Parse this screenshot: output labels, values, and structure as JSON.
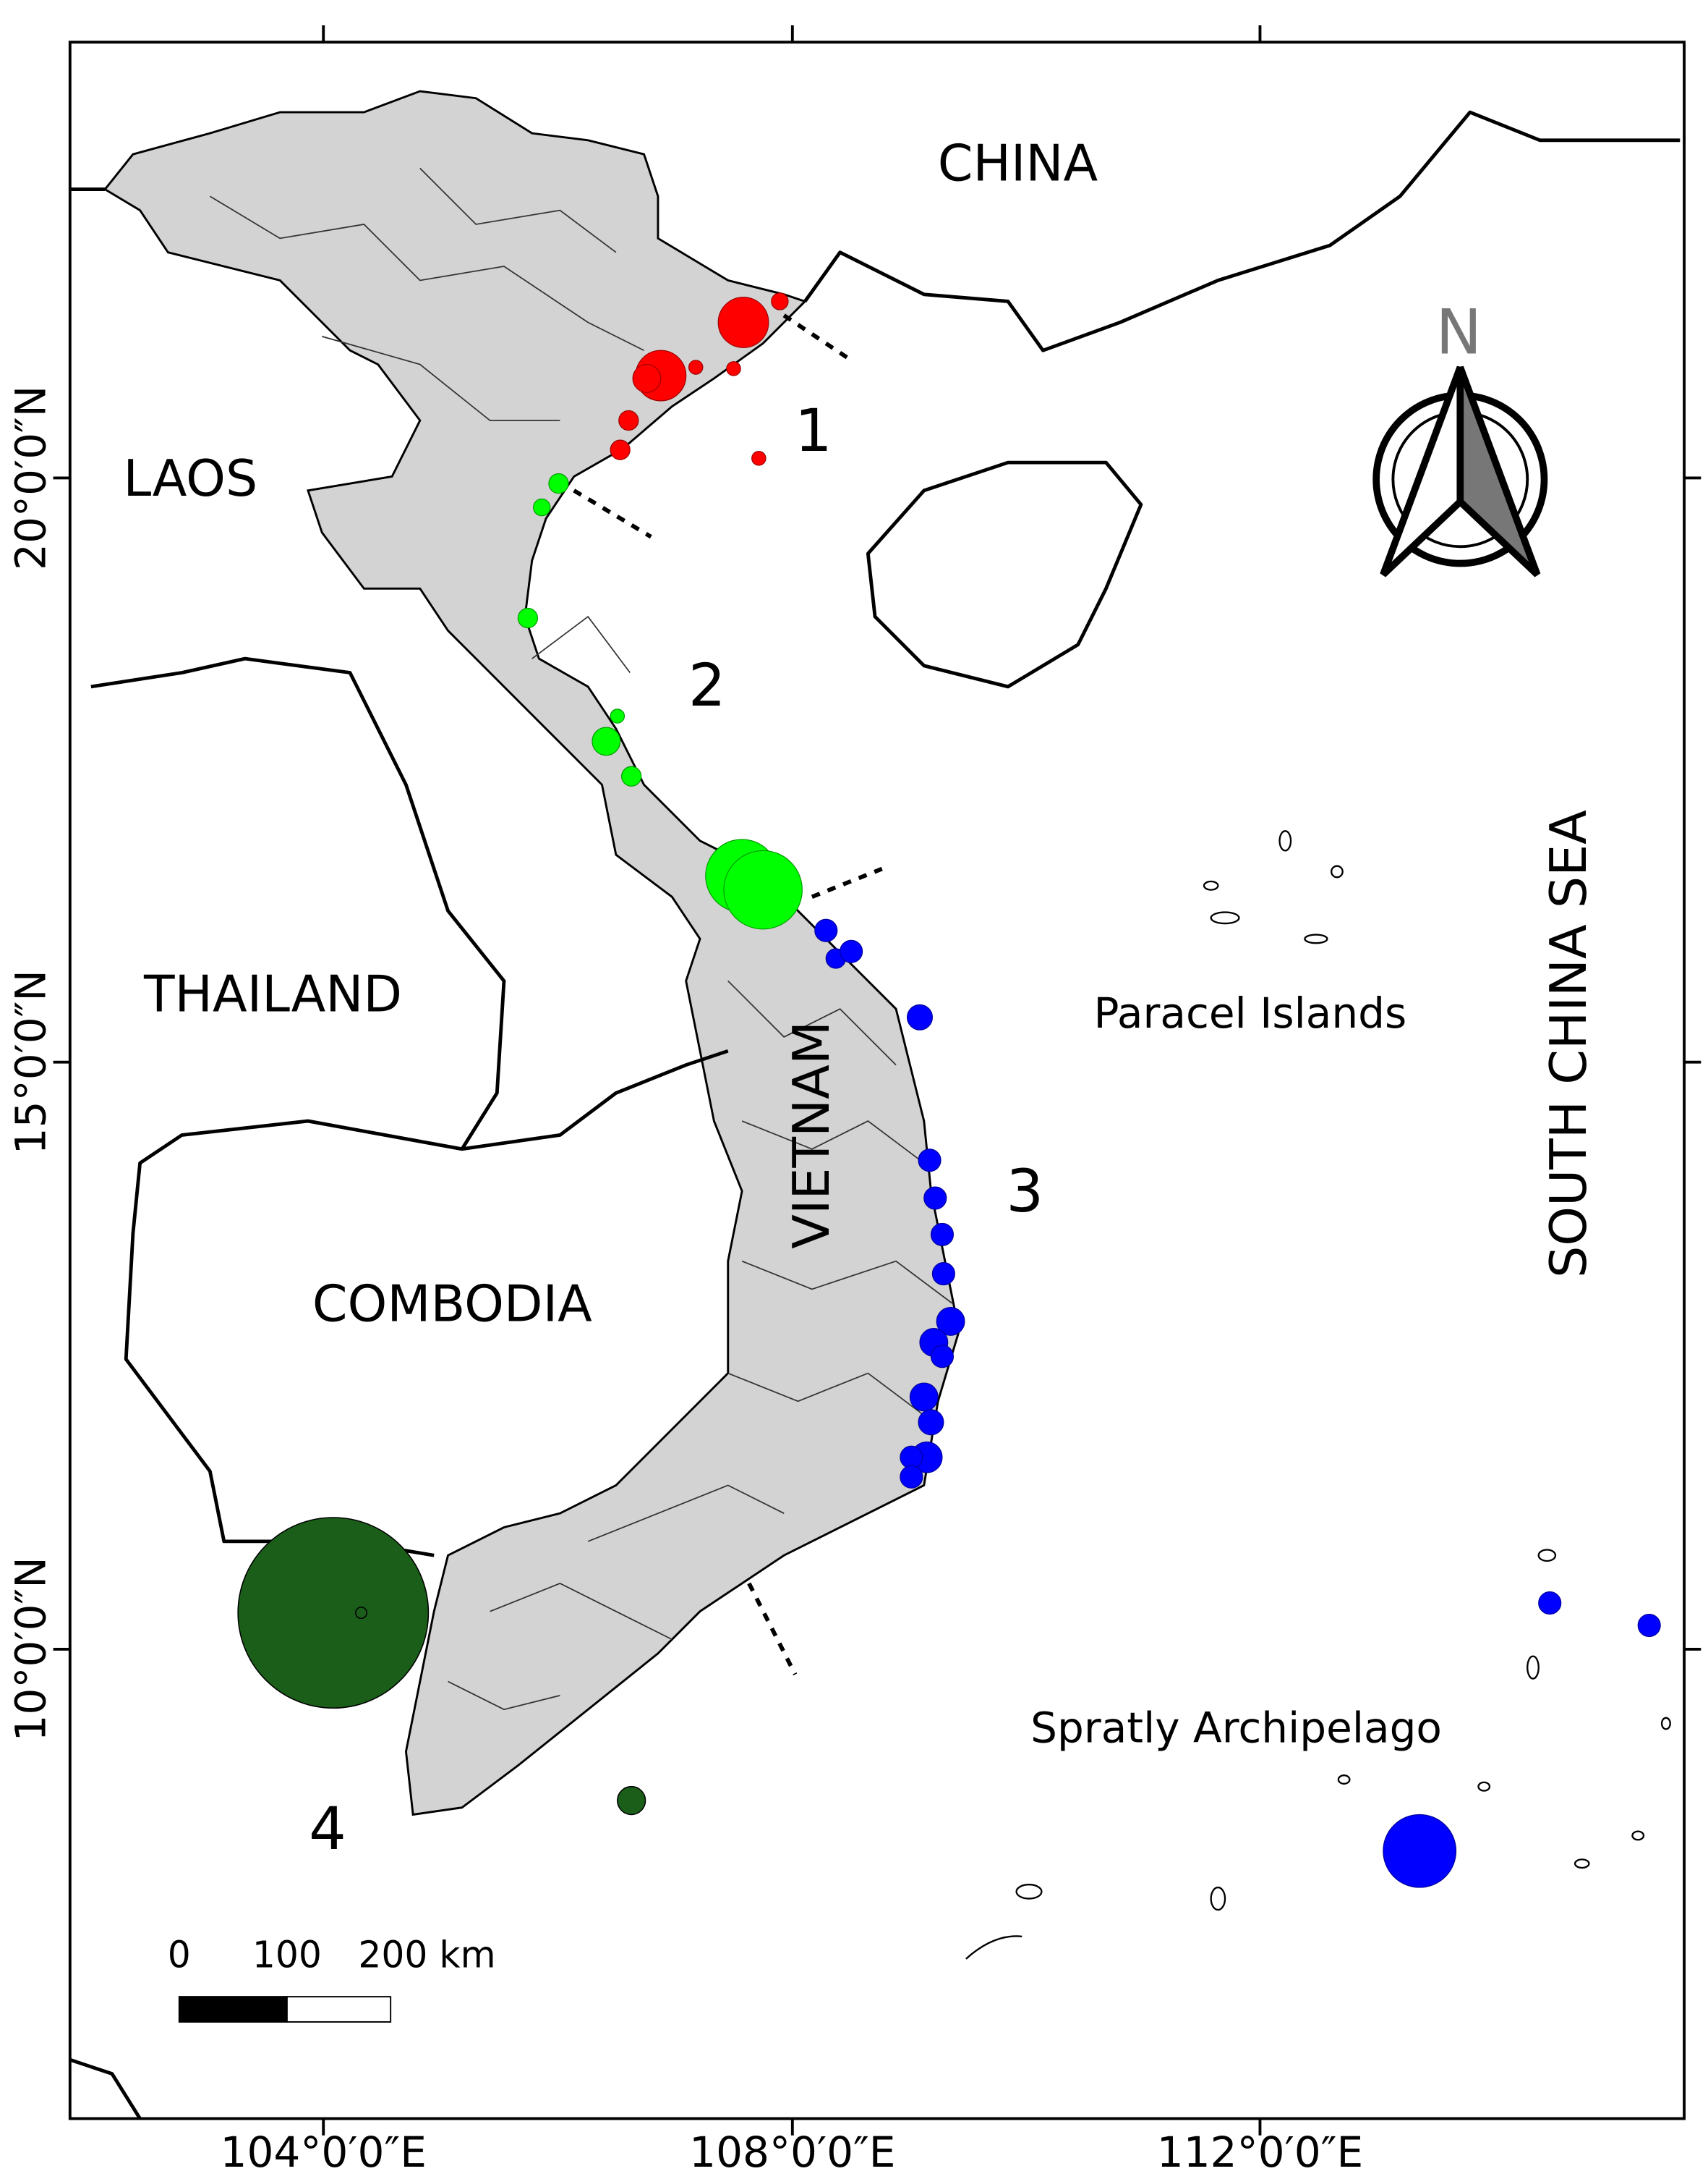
{
  "map": {
    "countries": [
      "CHINA",
      "LAOS",
      "THAILAND",
      "COMBODIA",
      "VIETNAM"
    ],
    "sea": "SOUTH CHINA SEA",
    "islands": [
      "Paracel Islands",
      "Spratly Archipelago"
    ],
    "regions": [
      "1",
      "2",
      "3",
      "4"
    ],
    "north": "N",
    "longitude_ticks": [
      "104°0′0″E",
      "108°0′0″E",
      "112°0′0″E"
    ],
    "latitude_ticks": [
      "20°0′0″N",
      "15°0′0″N",
      "10°0′0″N"
    ],
    "scale_bar": [
      "0",
      "100",
      "200 km"
    ]
  }
}
